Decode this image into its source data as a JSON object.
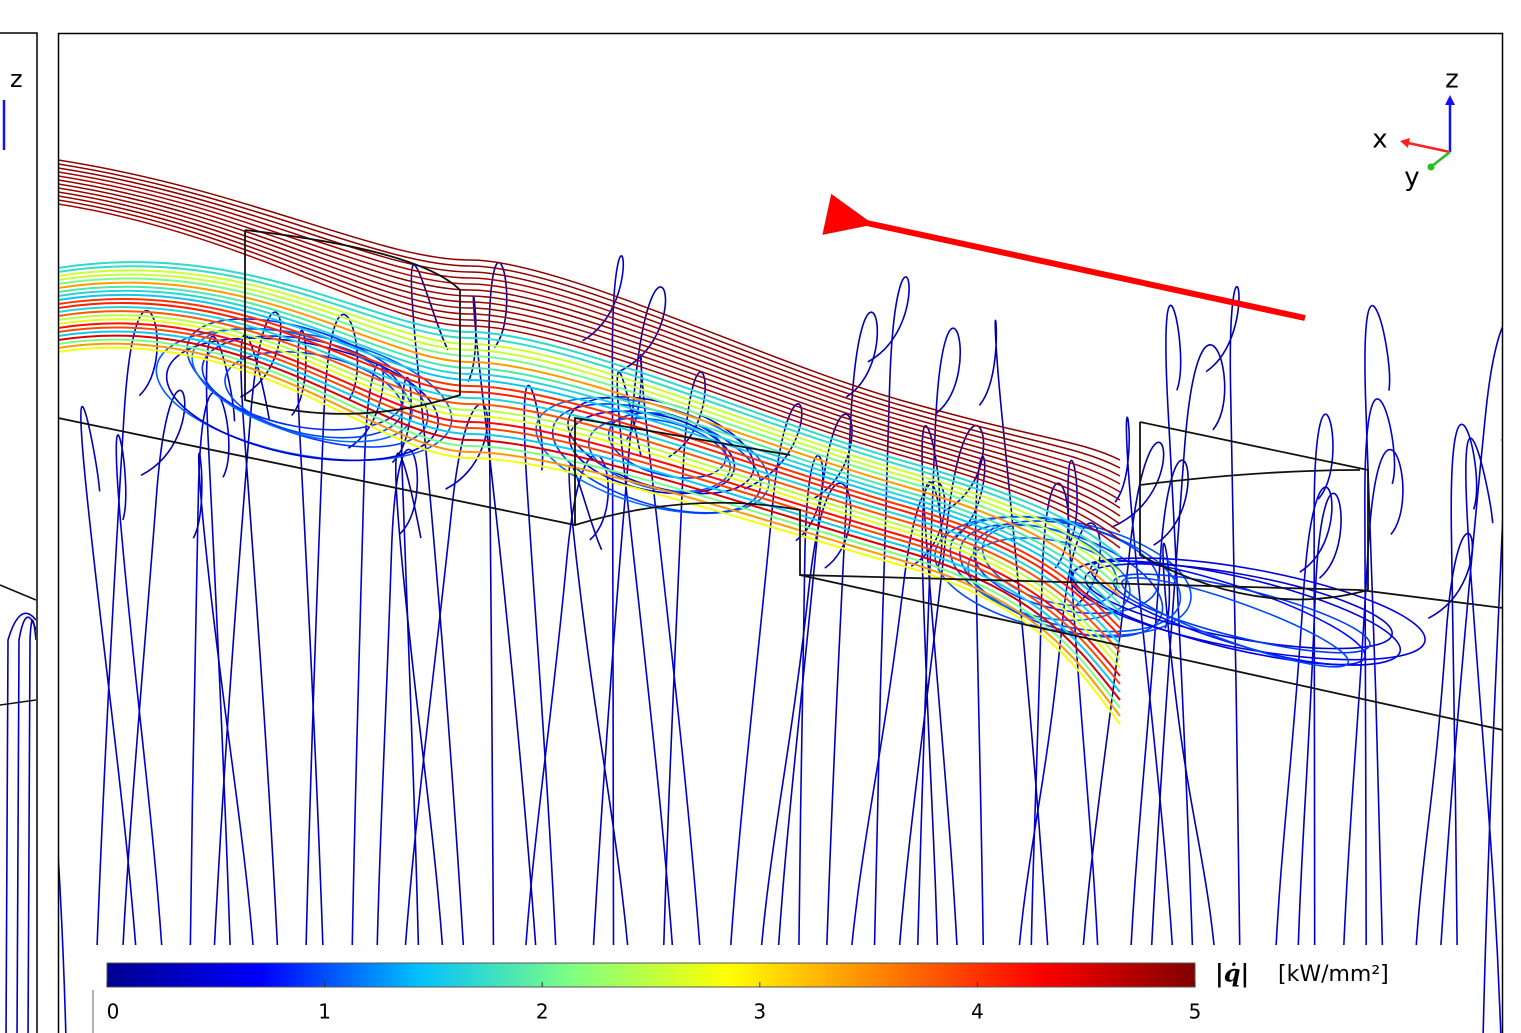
{
  "chart_data": {
    "type": "colorbar",
    "quantity": "|q̇|",
    "unit": "[kW/mm²]",
    "clim": [
      0,
      5
    ],
    "ticks": [
      0,
      1,
      2,
      3,
      4,
      5
    ],
    "colormap": [
      "#00008f",
      "#0000ff",
      "#00c0ff",
      "#80ff80",
      "#ffff00",
      "#ff8000",
      "#ff0000",
      "#800000"
    ]
  },
  "left_triad": {
    "z": "z"
  },
  "triad": {
    "x": "x",
    "y": "y",
    "z": "z"
  }
}
